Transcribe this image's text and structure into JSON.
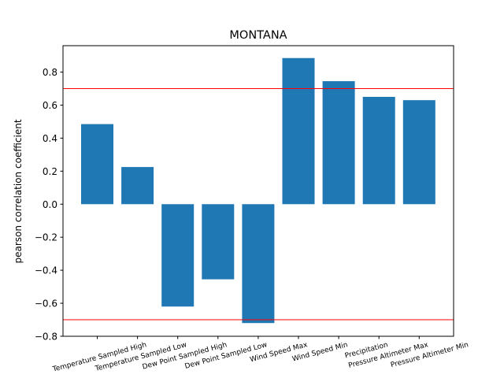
{
  "chart_data": {
    "type": "bar",
    "title": "MONTANA",
    "xlabel": "",
    "ylabel": "pearson correlation coefficient",
    "categories": [
      "Temperature Sampled High",
      "Temperature Sampled Low",
      "Dew Point Sampled High",
      "Dew Point Sampled Low",
      "Wind Speed Max",
      "Wind Speed Min",
      "Precipitation",
      "Pressure Altimeter Max",
      "Pressure Altimeter Min"
    ],
    "values": [
      0.485,
      0.225,
      -0.62,
      -0.455,
      -0.72,
      0.885,
      0.745,
      0.65,
      0.63
    ],
    "ylim": [
      -0.8,
      0.96
    ],
    "yticks": [
      -0.8,
      -0.6,
      -0.4,
      -0.2,
      0.0,
      0.2,
      0.4,
      0.6,
      0.8
    ],
    "ytick_labels": [
      "−0.8",
      "−0.6",
      "−0.4",
      "−0.2",
      "0.0",
      "0.2",
      "0.4",
      "0.6",
      "0.8"
    ],
    "reference_lines": [
      0.7,
      -0.7
    ],
    "grid": false,
    "bar_color": "#1f77b4",
    "reference_line_color": "#ff0000"
  }
}
